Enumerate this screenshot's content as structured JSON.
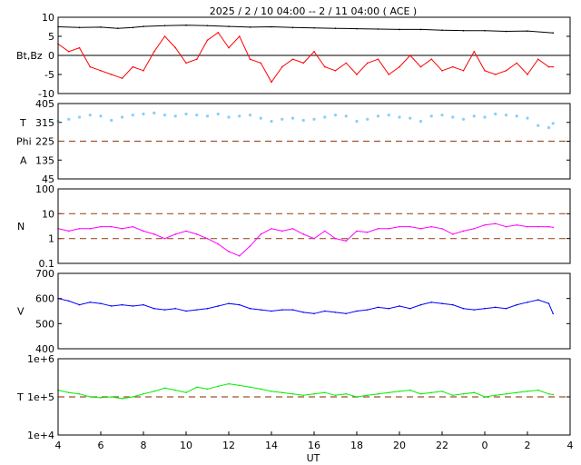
{
  "title": "2025 /  2 / 10   04:00 -- 2 / 11  04:00 ( ACE )",
  "xlabel": "UT",
  "x_tick_labels": [
    "4",
    "6",
    "8",
    "10",
    "12",
    "14",
    "16",
    "18",
    "20",
    "22",
    "0",
    "2",
    "4"
  ],
  "colors": {
    "bt": "#000000",
    "bz": "#ff0000",
    "phi": "#87cefa",
    "phi_dup": "#b0b0b0",
    "density": "#ff00ff",
    "speed": "#0000ff",
    "temperature": "#00ee00",
    "ref_dash": "#a0522d"
  },
  "chart_data": [
    {
      "type": "line",
      "panel": "magnetic field",
      "ylabel": "Bt,Bz",
      "ylim": [
        -10,
        10
      ],
      "y_tick_labels": [
        "10",
        "5",
        "0",
        "-5",
        "-10"
      ],
      "zero_line": true,
      "series": [
        {
          "name": "Bt",
          "x": [
            4,
            5,
            6,
            6.8,
            7.5,
            8,
            9,
            10,
            11,
            12,
            13,
            14,
            15,
            16,
            17,
            18,
            19,
            20,
            21,
            22,
            23,
            24,
            25,
            26,
            27.2
          ],
          "values": [
            7.5,
            7.3,
            7.4,
            7.1,
            7.3,
            7.6,
            7.8,
            7.9,
            7.8,
            7.6,
            7.4,
            7.5,
            7.3,
            7.2,
            7.1,
            7.0,
            6.9,
            6.8,
            6.8,
            6.6,
            6.5,
            6.5,
            6.3,
            6.4,
            5.9
          ]
        },
        {
          "name": "Bz",
          "x": [
            4,
            4.5,
            5,
            5.5,
            6,
            6.5,
            7,
            7.5,
            8,
            8.5,
            9,
            9.5,
            10,
            10.5,
            11,
            11.5,
            12,
            12.5,
            13,
            13.5,
            14,
            14.5,
            15,
            15.5,
            16,
            16.5,
            17,
            17.5,
            18,
            18.5,
            19,
            19.5,
            20,
            20.5,
            21,
            21.5,
            22,
            22.5,
            23,
            23.5,
            24,
            24.5,
            25,
            25.5,
            26,
            26.5,
            27,
            27.2
          ],
          "values": [
            3,
            1,
            2,
            -3,
            -4,
            -5,
            -6,
            -3,
            -4,
            1,
            5,
            2,
            -2,
            -1,
            4,
            6,
            2,
            5,
            -1,
            -2,
            -7,
            -3,
            -1,
            -2,
            1,
            -3,
            -4,
            -2,
            -5,
            -2,
            -1,
            -5,
            -3,
            0,
            -3,
            -1,
            -4,
            -3,
            -4,
            1,
            -4,
            -5,
            -4,
            -2,
            -5,
            -1,
            -3,
            -3
          ]
        }
      ]
    },
    {
      "type": "scatter",
      "panel": "phi angle",
      "ylabel_lines": [
        "T",
        "Phi",
        "A"
      ],
      "ylim": [
        45,
        405
      ],
      "y_tick_labels": [
        "405",
        "315",
        "225",
        "135",
        "45"
      ],
      "reference_line": 225,
      "series": [
        {
          "x": [
            4,
            4.5,
            5,
            5.5,
            6,
            6.5,
            7,
            7.5,
            8,
            8.5,
            9,
            9.5,
            10,
            10.5,
            11,
            11.5,
            12,
            12.5,
            13,
            13.5,
            14,
            14.5,
            15,
            15.5,
            16,
            16.5,
            17,
            17.5,
            18,
            18.5,
            19,
            19.5,
            20,
            20.5,
            21,
            21.5,
            22,
            22.5,
            23,
            23.5,
            24,
            24.5,
            25,
            25.5,
            26,
            26.5,
            27,
            27.2
          ],
          "values": [
            320,
            330,
            340,
            350,
            345,
            325,
            340,
            350,
            355,
            360,
            350,
            345,
            355,
            350,
            345,
            355,
            340,
            345,
            350,
            335,
            320,
            330,
            335,
            325,
            330,
            340,
            350,
            345,
            320,
            330,
            345,
            350,
            340,
            335,
            320,
            345,
            350,
            340,
            330,
            345,
            340,
            355,
            350,
            345,
            335,
            300,
            290,
            310
          ]
        }
      ]
    },
    {
      "type": "line",
      "panel": "proton density",
      "ylabel": "N",
      "scale": "log",
      "ylim": [
        0.1,
        100
      ],
      "y_tick_labels": [
        "100",
        "10",
        "1",
        "0.1"
      ],
      "reference_lines": [
        1,
        10
      ],
      "series": [
        {
          "x": [
            4,
            4.5,
            5,
            5.5,
            6,
            6.5,
            7,
            7.5,
            8,
            8.5,
            9,
            9.5,
            10,
            10.5,
            11,
            11.5,
            12,
            12.5,
            13,
            13.5,
            14,
            14.5,
            15,
            15.5,
            16,
            16.5,
            17,
            17.5,
            18,
            18.5,
            19,
            19.5,
            20,
            20.5,
            21,
            21.5,
            22,
            22.5,
            23,
            23.5,
            24,
            24.5,
            25,
            25.5,
            26,
            26.5,
            27,
            27.2
          ],
          "values": [
            2.5,
            2,
            2.5,
            2.5,
            3,
            3,
            2.5,
            3,
            2,
            1.5,
            1,
            1.5,
            2,
            1.5,
            1,
            0.6,
            0.3,
            0.2,
            0.5,
            1.5,
            2.5,
            2,
            2.5,
            1.5,
            1,
            2,
            1,
            0.8,
            2,
            1.8,
            2.5,
            2.5,
            3,
            3,
            2.5,
            3,
            2.5,
            1.5,
            2,
            2.5,
            3.5,
            4,
            3,
            3.5,
            3,
            3,
            3,
            2.8
          ]
        }
      ]
    },
    {
      "type": "line",
      "panel": "solar wind speed",
      "ylabel": "V",
      "ylim": [
        400,
        700
      ],
      "y_tick_labels": [
        "700",
        "600",
        "500",
        "400"
      ],
      "series": [
        {
          "x": [
            4,
            4.5,
            5,
            5.5,
            6,
            6.5,
            7,
            7.5,
            8,
            8.5,
            9,
            9.5,
            10,
            10.5,
            11,
            11.5,
            12,
            12.5,
            13,
            13.5,
            14,
            14.5,
            15,
            15.5,
            16,
            16.5,
            17,
            17.5,
            18,
            18.5,
            19,
            19.5,
            20,
            20.5,
            21,
            21.5,
            22,
            22.5,
            23,
            23.5,
            24,
            24.5,
            25,
            25.5,
            26,
            26.5,
            27,
            27.2
          ],
          "values": [
            600,
            590,
            575,
            585,
            580,
            570,
            575,
            570,
            575,
            560,
            555,
            560,
            550,
            555,
            560,
            570,
            580,
            575,
            560,
            555,
            550,
            555,
            555,
            545,
            540,
            550,
            545,
            540,
            550,
            555,
            565,
            560,
            570,
            560,
            575,
            585,
            580,
            575,
            560,
            555,
            560,
            565,
            560,
            575,
            585,
            595,
            580,
            540
          ]
        }
      ]
    },
    {
      "type": "line",
      "panel": "proton temperature",
      "ylabel": "T",
      "scale": "log",
      "ylim": [
        10000,
        1000000
      ],
      "y_tick_labels": [
        "1e+6",
        "1e+5",
        "1e+4"
      ],
      "reference_line": 100000,
      "series": [
        {
          "x": [
            4,
            4.5,
            5,
            5.5,
            6,
            6.5,
            7,
            7.5,
            8,
            8.5,
            9,
            9.5,
            10,
            10.5,
            11,
            11.5,
            12,
            12.5,
            13,
            13.5,
            14,
            14.5,
            15,
            15.5,
            16,
            16.5,
            17,
            17.5,
            18,
            18.5,
            19,
            19.5,
            20,
            20.5,
            21,
            21.5,
            22,
            22.5,
            23,
            23.5,
            24,
            24.5,
            25,
            25.5,
            26,
            26.5,
            27,
            27.2
          ],
          "values": [
            150000,
            130000,
            120000,
            100000,
            95000,
            100000,
            90000,
            100000,
            120000,
            140000,
            170000,
            150000,
            130000,
            180000,
            160000,
            190000,
            220000,
            200000,
            180000,
            160000,
            140000,
            130000,
            120000,
            110000,
            120000,
            130000,
            110000,
            120000,
            100000,
            110000,
            120000,
            130000,
            140000,
            150000,
            120000,
            130000,
            140000,
            110000,
            120000,
            130000,
            100000,
            110000,
            120000,
            130000,
            140000,
            150000,
            120000,
            115000
          ]
        }
      ]
    }
  ]
}
